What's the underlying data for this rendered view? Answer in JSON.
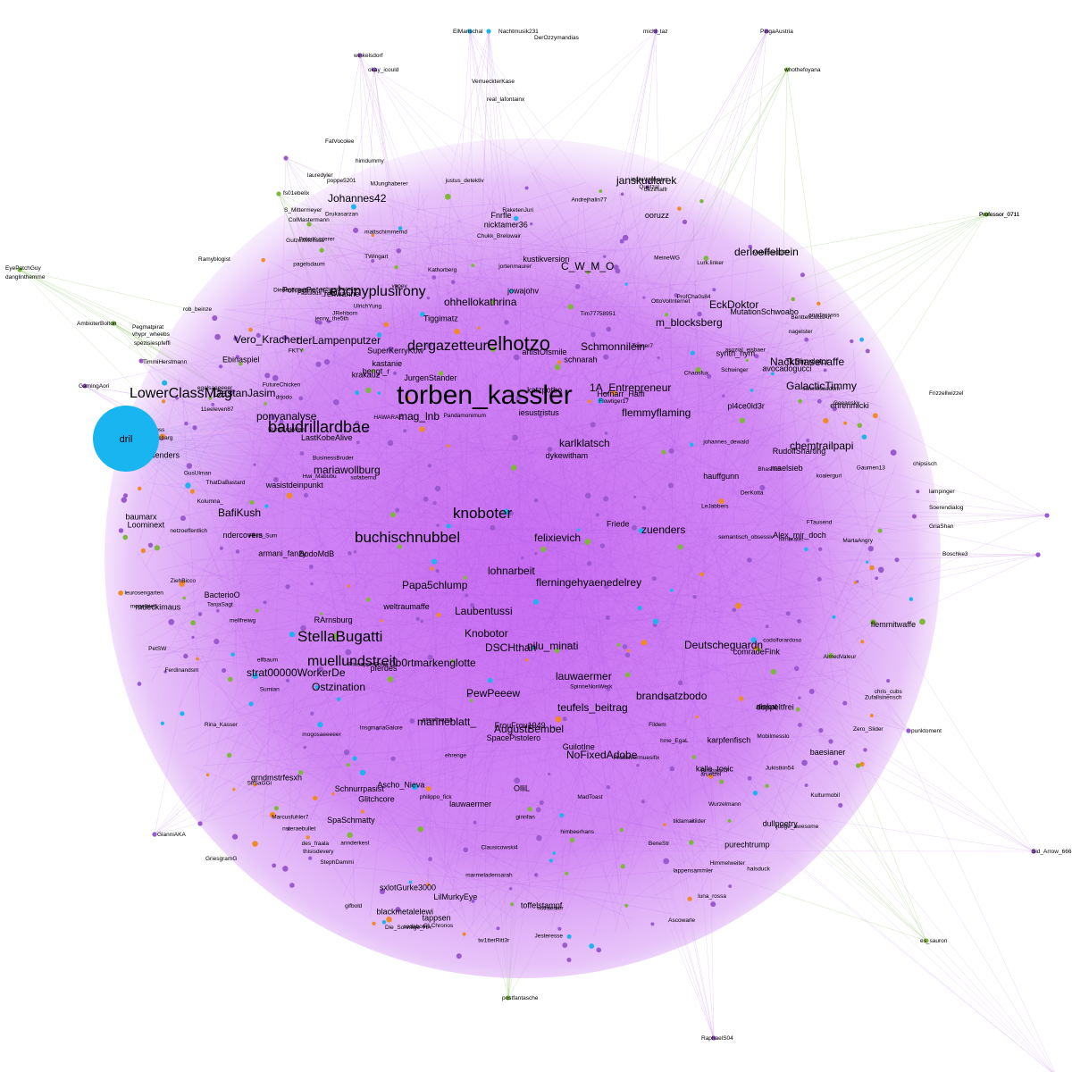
{
  "colors": {
    "background": "#ffffff",
    "cloud": "#c778f0",
    "cloud_edge": "#b05ae6",
    "node_purple": "#9b59d0",
    "node_green": "#7db83a",
    "node_blue": "#19b5f0",
    "node_orange": "#f08a24",
    "edge_faint": "#d9b3f2",
    "edge_green": "#a8d08a",
    "edge_blue": "#9bd6f2",
    "text": "#000000"
  },
  "hub": {
    "label": "dril",
    "color": "#19b5f0"
  },
  "labels": {
    "large": [
      "torben_kassler",
      "elhotzo",
      "baudrillardbae",
      "LowerClassMag",
      "buchischnubbel",
      "StellaBugatti",
      "knoboter",
      "dergazetteur",
      "ebonyplusirony",
      "muellundstreit"
    ],
    "medium": [
      "flerningehyaenedelrey",
      "Papa5chlump",
      "nilu_minati",
      "DSCHthan",
      "PewPeeew",
      "brandsatzbodo",
      "AugustBembel",
      "NoFixedAdobe",
      "teufels_beitrag",
      "felixievich",
      "Schmonnilein",
      "1A_Entrepreneur",
      "derLampenputzer",
      "Johannes42",
      "ohhellokathrina",
      "C_W_M_O",
      "EckDoktor",
      "derloeffelbein",
      "janskudlarek",
      "Deutscheguardn",
      "chemtrailpapi",
      "karlklatsch",
      "BafiKush",
      "strat00000WorkerDe",
      "Ostzination",
      "ob0rtmarkenglotte",
      "marineblatt_",
      "lohnarbeit",
      "zuenders",
      "Laubentussi",
      "Knobotor",
      "mag_lnb",
      "Vero_Kracher",
      "DastanJasim",
      "ponyanalyse",
      "Nacktnasenaffe",
      "GalacticTimmy",
      "m_blocksberg",
      "mariawollburg",
      "flemmyflaming",
      "lauwaermer"
    ],
    "small": [
      "Tiggimatz",
      "Friede",
      "avocadogucci",
      "Alex_mir_doch",
      "BodoMdB",
      "LastKobeAlive",
      "Glitchcore",
      "Ascho_Nieva",
      "wasistdeinpunkt",
      "krakauz",
      "schnarah",
      "lauwaermer",
      "Fnrfle",
      "LilMurkyEye",
      "weltraumaffe",
      "OlliL",
      "zuenders",
      "jowajohv",
      "tappsen",
      "SpacePistolero",
      "purechtrump",
      "BacterioO",
      "PorreePeter",
      "armani_fanzy",
      "grndmstrfesxh",
      "Hofnarr_Haffi",
      "dullpoetry",
      "ndercovers",
      "pl4ce0ld3r",
      "kalle_tosic",
      "iesustristus",
      "sxlotGurke3000",
      "Schnurrpasist",
      "pferdes",
      "RudolfSharting",
      "SpaSchmatty",
      "comradeFink",
      "katzpotbo",
      "MutationSchwoabo",
      "artistOfsmile",
      "baumarx",
      "kustikversion",
      "flemmitwaffe",
      "TLSimulator",
      "dykewitham",
      "RArnsburg",
      "ehrenmicki",
      "bengt_r",
      "nicktamer36",
      "karpfenfisch",
      "FrouFrou1949",
      "doppeltfrei",
      "blackmetalelewi",
      "toffelstampf",
      "baesianer",
      "JurgenStander",
      "rehwanne",
      "Loominext",
      "GuilotIne",
      "hauffgunn",
      "ooruzz",
      "synth_nym",
      "Ebinaspiel",
      "mueckimaus",
      "kastanie",
      "SuperKerryKow",
      "alekat",
      "maelsieb"
    ],
    "tiny": [
      "ElMarischal",
      "Nachtmusik231",
      "DerOzzymandias",
      "michl_taz",
      "PingaAustria",
      "winkelsdorf",
      "okay_icould",
      "whothefoyana",
      "real_lafontainx",
      "VerrueckterKase",
      "marmeladensarah",
      "FKTY",
      "Pandamonimum",
      "aruetzel",
      "AimedValeur",
      "judge_awesome",
      "MartaAngry",
      "PetSW",
      "FatVocolee",
      "Chukk_Brelowair",
      "lauredyler",
      "himdummy",
      "poppe5201",
      "fs01ebelix",
      "S_Mittermeyer",
      "EyePatchGuy",
      "danglinthemme",
      "Professor_0711",
      "Ramyblogist",
      "rob_beinze",
      "AmbioterBolton",
      "Pegmatpirat",
      "vhypr_wheebs",
      "spezisiespfeffi",
      "TimmiHerstmann",
      "GamingAori",
      "Frizzellwizzel",
      "luna_rossa",
      "Quetzal",
      "johannes_dewald",
      "lenchen_gross",
      "Marcusfuhler7",
      "HAWARAZ",
      "11eeleven87",
      "netzoeffentlich",
      "anadasssss",
      "Lurk.linker",
      "schwachstellen",
      "PeterKusterer",
      "GianniAKA",
      "GriesgramG",
      "philippo_fick",
      "justus_detektiv",
      "Sid_Arrow_666",
      "es_sauron",
      "postfantasche",
      "RaphaelS04",
      "Die_Sonntige_HA",
      "GLChronos",
      "Zero_Slider",
      "punktoment",
      "mellfreiwg",
      "lampinger",
      "Soerendialog",
      "GriaShan",
      "Boschke3",
      "chipsisch",
      "Professor_0711",
      "Chaosfux",
      "Bhasmin",
      "pimelmama",
      "BeneStr",
      "DerKotta",
      "ColMastermann",
      "TanjaSagt",
      "Wurzelmann",
      "StephDammi",
      "vppev",
      "lappensammler",
      "Jesteresse",
      "HalleWerkehrt",
      "BentteliciousArt",
      "JRehborn",
      "himbeerhans",
      "Andrejhalin77",
      "Flowtiger17",
      "nagelster",
      "GusUlman",
      "Kulturmobil",
      "mattschimmemd",
      "sodaborn",
      "elfbaum",
      "BusinessBruder",
      "tildamaitilder",
      "leurosengarten",
      "Hwi_Mabubu",
      "mogelhieb",
      "gifbold",
      "koalergurl",
      "Sumian",
      "Kathorberg",
      "Fildem",
      "Drukasarzan",
      "SirSaGGi",
      "chris_cubs",
      "dezimalfr",
      "OttoVolInternet",
      "Bimbam77",
      "Mobimax1199",
      "Rina_Kasser",
      "Heim_Sum",
      "Himmelweiter",
      "Fabulous_Filou",
      "PineappleSalat",
      "MeineWG",
      "ZiehBicco",
      "Tenner7",
      "TWingart",
      "des_fraala",
      "Gaumen13",
      "Ferdinandsm",
      "Schwinger",
      "hirnbrater",
      "hme_EgaL",
      "Tim77758951",
      "mogosaeeeeer",
      "nstraemer",
      "jortenmaurer",
      "tw1tterRitt3r",
      "Jukistkin54",
      "MadToast",
      "Geeansky",
      "Prottelvermuesifix",
      "halsduck",
      "RaketenJuri",
      "FutureChicken",
      "drjodo",
      "GutzeitMelissa",
      "ThatDaBastard",
      "thisisdevery",
      "ProfCha0s84",
      "lnsgmariaGalore",
      "Ascowarle",
      "Mobilmesslo",
      "FTausend",
      "Zufallsinensch",
      "Diedas5chaffers",
      "pagelsdaum",
      "LeJabbers",
      "egalsaeeeeer",
      "RundfunkWest",
      "Markgrafvoncbarg",
      "annderkest",
      "jenny_the5th",
      "schm00sedom",
      "UlrichYung",
      "semantisch_obsessiv",
      "Kolumna_",
      "codolforardoso",
      "ehrenge",
      "MJunghaberer",
      "SpinneNonWerk",
      "Clausicowski4",
      "ginnfan",
      "asozial_eisbaer",
      "nsteraebullet",
      "sofabernd"
    ]
  }
}
